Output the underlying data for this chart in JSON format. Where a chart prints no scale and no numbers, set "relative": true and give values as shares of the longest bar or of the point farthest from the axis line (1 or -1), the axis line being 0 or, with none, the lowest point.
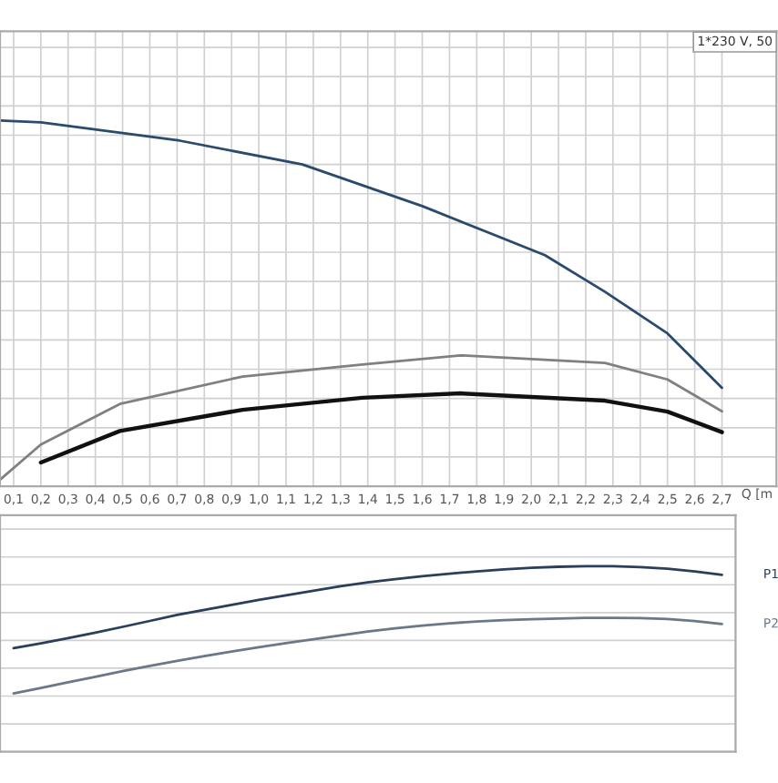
{
  "chart_data": [
    {
      "type": "line",
      "relative": true,
      "xlabel": "Q [m",
      "annotations": [
        "1*230 V, 50"
      ],
      "grid": true,
      "xlim": [
        0.05,
        2.9
      ],
      "xticks": [
        {
          "value": 0.1,
          "label": "0,1"
        },
        {
          "value": 0.2,
          "label": "0,2"
        },
        {
          "value": 0.3,
          "label": "0,3"
        },
        {
          "value": 0.4,
          "label": "0,4"
        },
        {
          "value": 0.5,
          "label": "0,5"
        },
        {
          "value": 0.6,
          "label": "0,6"
        },
        {
          "value": 0.7,
          "label": "0,7"
        },
        {
          "value": 0.8,
          "label": "0,8"
        },
        {
          "value": 0.9,
          "label": "0,9"
        },
        {
          "value": 1.0,
          "label": "1,0"
        },
        {
          "value": 1.1,
          "label": "1,1"
        },
        {
          "value": 1.2,
          "label": "1,2"
        },
        {
          "value": 1.3,
          "label": "1,3"
        },
        {
          "value": 1.4,
          "label": "1,4"
        },
        {
          "value": 1.5,
          "label": "1,5"
        },
        {
          "value": 1.6,
          "label": "1,6"
        },
        {
          "value": 1.7,
          "label": "1,7"
        },
        {
          "value": 1.8,
          "label": "1,8"
        },
        {
          "value": 1.9,
          "label": "1,9"
        },
        {
          "value": 2.0,
          "label": "2,0"
        },
        {
          "value": 2.1,
          "label": "2,1"
        },
        {
          "value": 2.2,
          "label": "2,2"
        },
        {
          "value": 2.3,
          "label": "2,3"
        },
        {
          "value": 2.4,
          "label": "2,4"
        },
        {
          "value": 2.5,
          "label": "2,5"
        },
        {
          "value": 2.6,
          "label": "2,6"
        },
        {
          "value": 2.7,
          "label": "2,7"
        }
      ],
      "series": [
        {
          "color": "#2a4a6e",
          "x": [
            0.05,
            0.2,
            0.71,
            1.16,
            1.6,
            2.05,
            2.27,
            2.5,
            2.7
          ],
          "values": [
            1.0,
            0.995,
            0.945,
            0.88,
            0.766,
            0.632,
            0.532,
            0.418,
            0.269
          ]
        },
        {
          "color": "#808080",
          "x": [
            0.05,
            0.2,
            0.49,
            0.94,
            1.38,
            1.74,
            2.27,
            2.5,
            2.7
          ],
          "values": [
            0.018,
            0.114,
            0.225,
            0.3,
            0.333,
            0.358,
            0.337,
            0.292,
            0.205
          ]
        },
        {
          "color": "#111111",
          "x": [
            0.2,
            0.49,
            0.94,
            1.38,
            1.74,
            2.27,
            2.5,
            2.7
          ],
          "values": [
            0.065,
            0.151,
            0.209,
            0.242,
            0.254,
            0.234,
            0.204,
            0.148
          ]
        }
      ]
    },
    {
      "type": "line",
      "relative": true,
      "grid": true,
      "categories": [
        null,
        null,
        null,
        null,
        null,
        null,
        null,
        null,
        null,
        null,
        null,
        null,
        null,
        null,
        null,
        null,
        null,
        null,
        null,
        null,
        null,
        null,
        null,
        null,
        null,
        null,
        null
      ],
      "series": [
        {
          "name": "P1",
          "color": "#2a3f5a",
          "values": [
            0.558,
            0.584,
            0.612,
            0.642,
            0.673,
            0.705,
            0.737,
            0.765,
            0.792,
            0.818,
            0.843,
            0.868,
            0.892,
            0.913,
            0.93,
            0.946,
            0.96,
            0.972,
            0.983,
            0.992,
            0.997,
            1.0,
            1.0,
            0.995,
            0.987,
            0.972,
            0.954
          ]
        },
        {
          "name": "P2",
          "color": "#6a7888",
          "values": [
            0.314,
            0.344,
            0.374,
            0.404,
            0.434,
            0.463,
            0.49,
            0.515,
            0.54,
            0.563,
            0.585,
            0.606,
            0.627,
            0.648,
            0.665,
            0.68,
            0.692,
            0.702,
            0.709,
            0.714,
            0.718,
            0.721,
            0.722,
            0.72,
            0.715,
            0.704,
            0.688
          ]
        }
      ]
    }
  ]
}
